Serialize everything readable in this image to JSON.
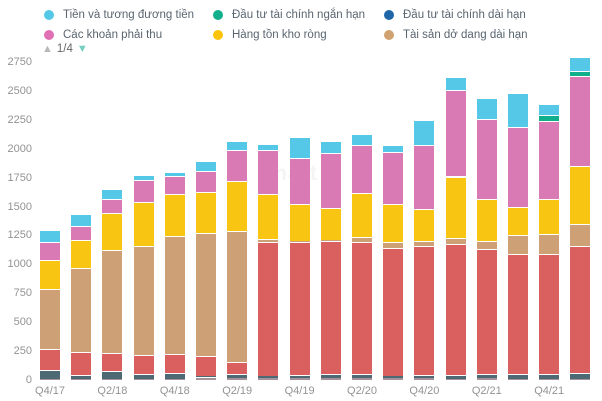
{
  "legend": {
    "page_indicator": "1/4",
    "items": [
      {
        "label": "Tiền và tương đương tiền",
        "color": "#55c8e8"
      },
      {
        "label": "Đầu tư tài chính ngắn hạn",
        "color": "#12af8d"
      },
      {
        "label": "Đầu tư tài chính dài hạn",
        "color": "#1f66a9"
      },
      {
        "label": "Các khoản phải thu",
        "color": "#e070b3"
      },
      {
        "label": "Hàng tồn kho ròng",
        "color": "#fdc40d"
      },
      {
        "label": "Tài sản dở dang dài hạn",
        "color": "#d0a272"
      }
    ],
    "pager_up_icon": "▲",
    "pager_down_icon": "▼"
  },
  "watermark": "Chart",
  "chart_data": {
    "type": "bar",
    "stacked": true,
    "n_bars": 18,
    "ylim": [
      0,
      2750
    ],
    "y_ticks": [
      0,
      250,
      500,
      750,
      1000,
      1250,
      1500,
      1750,
      2000,
      2250,
      2500,
      2750
    ],
    "x_tick_labels": [
      "Q4/17",
      "Q2/18",
      "Q4/18",
      "Q2/19",
      "Q4/19",
      "Q2/20",
      "Q4/20",
      "Q2/21",
      "Q4/21"
    ],
    "x_tick_bar_indices": [
      0,
      2,
      4,
      6,
      8,
      10,
      12,
      14,
      16
    ],
    "grid": false,
    "legend_position": "top",
    "series_note": "bottom-to-top stack order; empty labels belong to legend pages not currently shown",
    "series": [
      {
        "label": "",
        "color": "#a5939b",
        "values": [
          10,
          10,
          10,
          10,
          10,
          25,
          15,
          15,
          15,
          15,
          15,
          15,
          15,
          10,
          15,
          10,
          10,
          10
        ]
      },
      {
        "label": "",
        "color": "#4d6a74",
        "values": [
          80,
          30,
          65,
          40,
          50,
          10,
          35,
          20,
          25,
          40,
          35,
          20,
          30,
          30,
          40,
          45,
          45,
          50
        ]
      },
      {
        "label": "",
        "color": "#d9605f",
        "values": [
          180,
          200,
          160,
          165,
          165,
          175,
          105,
          1160,
          1150,
          1145,
          1140,
          1110,
          1110,
          1140,
          1080,
          1035,
          1035,
          1095
        ]
      },
      {
        "label": "Tài sản dở dang dài hạn",
        "color": "#cda175",
        "values": [
          520,
          725,
          890,
          945,
          1020,
          1065,
          1135,
          25,
          15,
          15,
          45,
          45,
          45,
          45,
          70,
          160,
          170,
          190
        ]
      },
      {
        "label": "Hàng tồn kho ròng",
        "color": "#f9c513",
        "values": [
          245,
          250,
          320,
          380,
          365,
          355,
          430,
          390,
          320,
          270,
          380,
          330,
          280,
          535,
          360,
          250,
          305,
          505
        ]
      },
      {
        "label": "Các khoản phải thu",
        "color": "#da7ab5",
        "values": [
          155,
          120,
          120,
          190,
          155,
          180,
          270,
          375,
          395,
          475,
          415,
          450,
          550,
          745,
          695,
          690,
          675,
          780
        ]
      },
      {
        "label": "Đầu tư tài chính dài hạn",
        "color": "#1f66a9",
        "values": [
          0,
          0,
          0,
          0,
          0,
          0,
          0,
          0,
          0,
          0,
          0,
          0,
          0,
          0,
          0,
          0,
          0,
          0
        ]
      },
      {
        "label": "Đầu tư tài chính ngắn hạn",
        "color": "#12af8d",
        "values": [
          0,
          0,
          0,
          0,
          0,
          0,
          0,
          0,
          0,
          0,
          0,
          0,
          0,
          0,
          0,
          0,
          50,
          45
        ]
      },
      {
        "label": "Tiền và tương đương tiền",
        "color": "#55c8e8",
        "values": [
          105,
          100,
          85,
          45,
          35,
          80,
          75,
          60,
          185,
          105,
          95,
          60,
          215,
          115,
          180,
          290,
          95,
          115
        ]
      }
    ]
  }
}
